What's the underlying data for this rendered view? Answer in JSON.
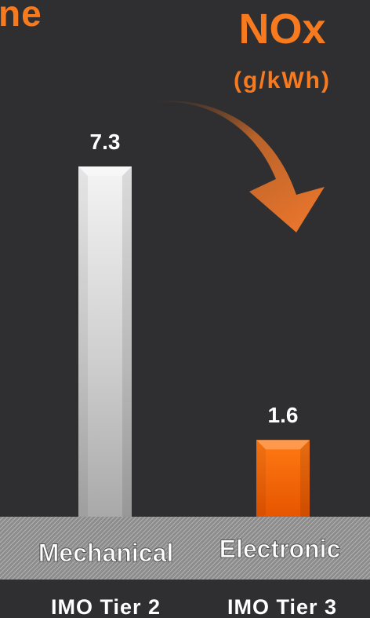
{
  "header": {
    "partial_title": "ne",
    "metric": "NOx",
    "unit": "(g/kWh)"
  },
  "chart_data": {
    "type": "bar",
    "categories": [
      "Mechanical",
      "Electronic"
    ],
    "subcategories": [
      "IMO Tier 2",
      "IMO Tier 3"
    ],
    "values": [
      7.3,
      1.6
    ],
    "value_labels": [
      "7.3",
      "1.6"
    ],
    "ylabel": "(g/kWh)",
    "ylim": [
      0,
      7.3
    ],
    "grid": false,
    "legend": "none",
    "colors": {
      "bar_mechanical": "#d9d9d9",
      "bar_electronic": "#ff6a00",
      "arrow": "#e8742a",
      "title": "#f77a1e",
      "background": "#2f2f31"
    }
  }
}
